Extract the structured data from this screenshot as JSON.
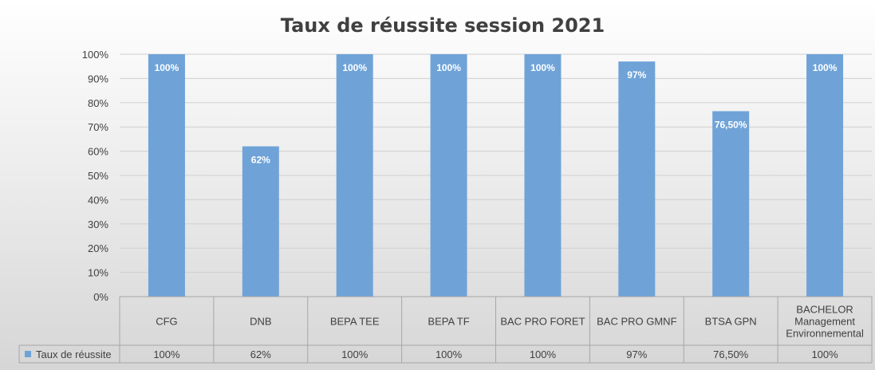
{
  "chart_data": {
    "type": "bar",
    "title": "Taux de réussite session 2021",
    "categories": [
      [
        "CFG"
      ],
      [
        "DNB"
      ],
      [
        "BEPA TEE"
      ],
      [
        "BEPA TF"
      ],
      [
        "BAC PRO FORET"
      ],
      [
        "BAC PRO GMNF"
      ],
      [
        "BTSA GPN"
      ],
      [
        "BACHELOR",
        "Management",
        "Environnemental"
      ]
    ],
    "series": [
      {
        "name": "Taux de réussite",
        "values": [
          100,
          62,
          100,
          100,
          100,
          97,
          76.5,
          100
        ],
        "labels": [
          "100%",
          "62%",
          "100%",
          "100%",
          "100%",
          "97%",
          "76,50%",
          "100%"
        ]
      }
    ],
    "ylim": [
      0,
      100
    ],
    "yticks": [
      "0%",
      "10%",
      "20%",
      "30%",
      "40%",
      "50%",
      "60%",
      "70%",
      "80%",
      "90%",
      "100%"
    ],
    "grid": true,
    "legend": "data-table",
    "colors": {
      "bar": "#6fa3d8",
      "title": "#404040"
    }
  }
}
